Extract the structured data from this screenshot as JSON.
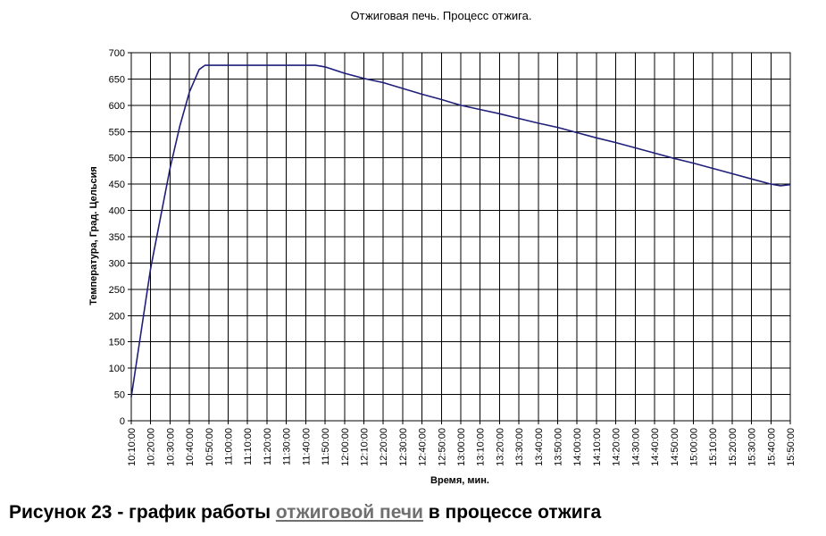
{
  "chart_data": {
    "type": "line",
    "title": "Отжиговая печь. Процесс отжига.",
    "xlabel": "Время, мин.",
    "ylabel": "Температура, Град. Цельсия",
    "ylim": [
      0,
      700
    ],
    "yticks": [
      "0",
      "50",
      "100",
      "150",
      "200",
      "250",
      "300",
      "350",
      "400",
      "450",
      "500",
      "550",
      "600",
      "650",
      "700"
    ],
    "categories": [
      "10:10:00",
      "10:20:00",
      "10:30:00",
      "10:40:00",
      "10:50:00",
      "11:00:00",
      "11:10:00",
      "11:20:00",
      "11:30:00",
      "11:40:00",
      "11:50:00",
      "12:00:00",
      "12:10:00",
      "12:20:00",
      "12:30:00",
      "12:40:00",
      "12:50:00",
      "13:00:00",
      "13:10:00",
      "13:20:00",
      "13:30:00",
      "13:40:00",
      "13:50:00",
      "14:00:00",
      "14:10:00",
      "14:20:00",
      "14:30:00",
      "14:40:00",
      "14:50:00",
      "15:00:00",
      "15:10:00",
      "15:20:00",
      "15:30:00",
      "15:40:00",
      "15:50:00"
    ],
    "grid": true,
    "series_color": "#1f1f7a",
    "series": [
      {
        "x": [
          "10:10:00",
          "10:20:00",
          "10:30:00",
          "10:35:00",
          "10:40:00",
          "10:45:00",
          "10:48:00",
          "10:50:00",
          "10:55:00",
          "11:00:00",
          "11:10:00",
          "11:20:00",
          "11:30:00",
          "11:40:00",
          "11:45:00",
          "11:50:00",
          "12:00:00",
          "12:10:00",
          "12:20:00",
          "12:30:00",
          "12:40:00",
          "12:50:00",
          "13:00:00",
          "13:10:00",
          "13:20:00",
          "13:30:00",
          "13:40:00",
          "13:50:00",
          "14:00:00",
          "14:10:00",
          "14:20:00",
          "14:30:00",
          "14:40:00",
          "14:50:00",
          "15:00:00",
          "15:10:00",
          "15:20:00",
          "15:30:00",
          "15:40:00",
          "15:45:00",
          "15:50:00"
        ],
        "values": [
          45,
          290,
          480,
          560,
          625,
          668,
          676,
          676,
          676,
          676,
          676,
          676,
          676,
          676,
          676,
          673,
          661,
          651,
          643,
          632,
          621,
          611,
          600,
          592,
          584,
          575,
          566,
          558,
          548,
          538,
          529,
          519,
          509,
          499,
          490,
          480,
          470,
          460,
          450,
          447,
          449
        ]
      }
    ]
  },
  "caption": {
    "prefix": "Рисунок 23 - график работы ",
    "link": "отжиговой печи",
    "suffix": " в процессе отжига"
  }
}
